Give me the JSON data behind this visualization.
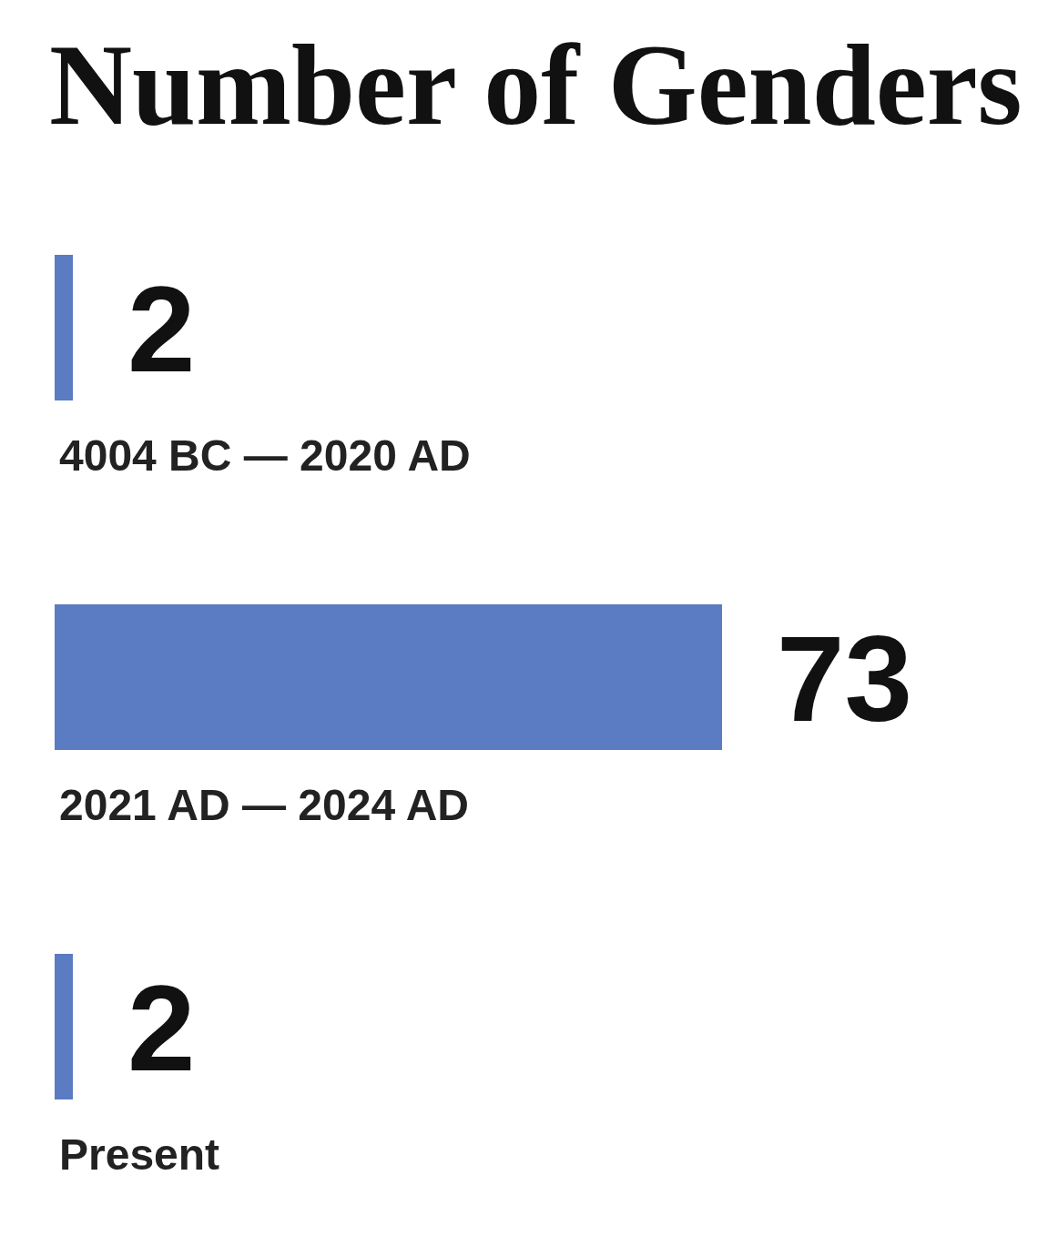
{
  "chart_data": {
    "type": "bar",
    "title": "Number of Genders",
    "orientation": "horizontal",
    "categories": [
      "4004 BC — 2020 AD",
      "2021 AD — 2024 AD",
      "Present"
    ],
    "values": [
      2,
      73,
      2
    ],
    "color": "#5b7bc3",
    "data_labels": true
  }
}
